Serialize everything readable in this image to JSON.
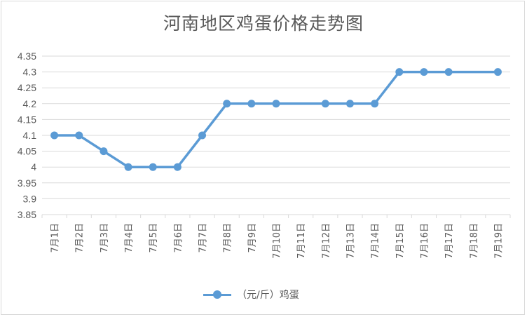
{
  "chart_data": {
    "type": "line",
    "title": "河南地区鸡蛋价格走势图",
    "categories": [
      "7月1日",
      "7月2日",
      "7月3日",
      "7月4日",
      "7月5日",
      "7月6日",
      "7月7日",
      "7月8日",
      "7月9日",
      "7月10日",
      "7月11日",
      "7月12日",
      "7月13日",
      "7月14日",
      "7月15日",
      "7月16日",
      "7月17日",
      "7月18日",
      "7月19日"
    ],
    "series": [
      {
        "name": "（元/斤）鸡蛋",
        "color": "#5b9bd5",
        "values": [
          4.1,
          4.1,
          4.05,
          4.0,
          4.0,
          4.0,
          4.1,
          4.2,
          4.2,
          4.2,
          null,
          4.2,
          4.2,
          4.2,
          4.3,
          4.3,
          4.3,
          null,
          4.3
        ]
      }
    ],
    "ylim": [
      3.85,
      4.35
    ],
    "yticks": [
      "3.85",
      "3.9",
      "3.95",
      "4",
      "4.05",
      "4.1",
      "4.15",
      "4.2",
      "4.25",
      "4.3",
      "4.35"
    ],
    "grid": true,
    "legend_position": "bottom"
  }
}
